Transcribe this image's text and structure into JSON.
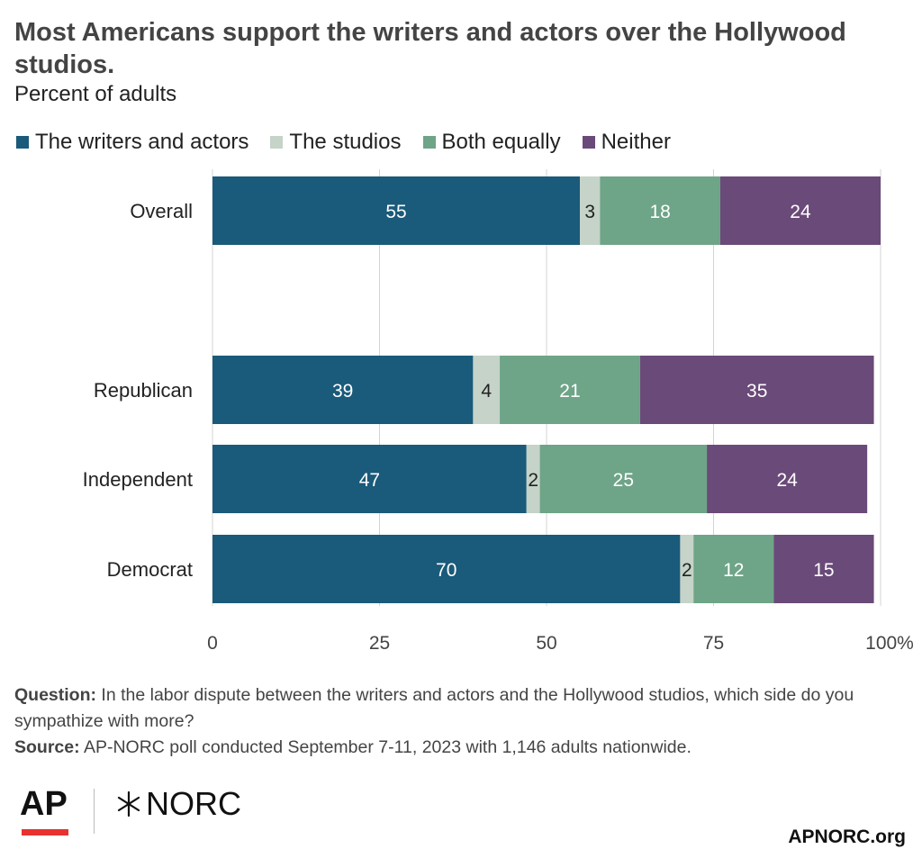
{
  "title": "Most Americans support the writers and actors over the Hollywood studios.",
  "subtitle": "Percent of adults",
  "legend": [
    {
      "label": "The writers and actors",
      "color": "#1a5a7a"
    },
    {
      "label": "The studios",
      "color": "#c5d3c8"
    },
    {
      "label": "Both equally",
      "color": "#6ea487"
    },
    {
      "label": "Neither",
      "color": "#6a4a78"
    }
  ],
  "chart_data": {
    "type": "bar",
    "orientation": "horizontal",
    "stacked": true,
    "categories": [
      "Overall",
      "Republican",
      "Independent",
      "Democrat"
    ],
    "series": [
      {
        "name": "The writers and actors",
        "values": [
          55,
          39,
          47,
          70
        ],
        "color": "#1a5a7a"
      },
      {
        "name": "The studios",
        "values": [
          3,
          4,
          2,
          2
        ],
        "color": "#c5d3c8"
      },
      {
        "name": "Both equally",
        "values": [
          18,
          21,
          25,
          12
        ],
        "color": "#6ea487"
      },
      {
        "name": "Neither",
        "values": [
          24,
          35,
          24,
          15
        ],
        "color": "#6a4a78"
      }
    ],
    "xlim": [
      0,
      100
    ],
    "xticks": [
      "0",
      "25",
      "50",
      "75",
      "100%"
    ],
    "grid": true,
    "legend_position": "top-left"
  },
  "notes": {
    "question_label": "Question:",
    "question_text": "In the labor dispute between the writers and actors and the Hollywood studios, which side do you sympathize with more?",
    "source_label": "Source:",
    "source_text": "AP-NORC poll conducted September 7-11, 2023 with 1,146 adults nationwide."
  },
  "logos": {
    "ap": "AP",
    "norc": "NORC"
  },
  "site": "APNORC.org"
}
